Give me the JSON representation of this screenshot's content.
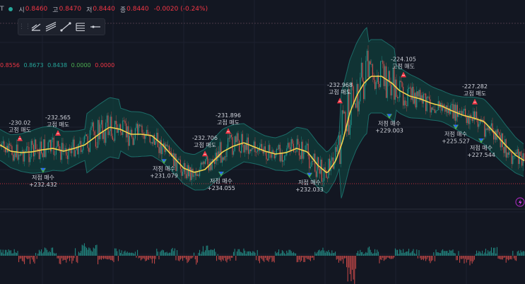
{
  "header": {
    "symbol_suffix": "T",
    "ohlc": [
      {
        "label": "시",
        "value": "0.8460"
      },
      {
        "label": "고",
        "value": "0.8470"
      },
      {
        "label": "저",
        "value": "0.8440"
      },
      {
        "label": "종",
        "value": "0.8440"
      }
    ],
    "change": "-0.0020 (-0.24%)",
    "status_color": "#26a69a"
  },
  "toolbar": {
    "tools": [
      "trend-angle-icon",
      "parallel-channel-icon",
      "trend-line-icon",
      "fib-retracement-icon",
      "horizontal-ray-icon"
    ]
  },
  "indicator": {
    "values": [
      {
        "value": "0.8556",
        "color": "#f23645"
      },
      {
        "value": "0.8673",
        "color": "#26a69a"
      },
      {
        "value": "0.8438",
        "color": "#26a69a"
      },
      {
        "value": "0.0000",
        "color": "#4caf50"
      },
      {
        "value": "0.0000",
        "color": "#f23645"
      }
    ]
  },
  "colors": {
    "up": "#26a69a",
    "down": "#ef5350",
    "basis": "#f2d44e",
    "band_fill": "#0e4a44",
    "band_line": "#26a69a",
    "sell_marker": "#f23645",
    "buy_marker_top": "#2962ff",
    "buy_marker_bottom": "#4caf50",
    "price_line": "#f23645"
  },
  "chart_data": {
    "type": "candlestick-with-bollinger-and-histogram",
    "price_line_value": 0.844,
    "signals": [
      {
        "type": "sell",
        "label": "고점 매도",
        "value": "-230.02",
        "x": 28
      },
      {
        "type": "buy",
        "label": "저점 매수",
        "value": "+232.432",
        "x": 61
      },
      {
        "type": "sell",
        "label": "고점 매도",
        "value": "-232.565",
        "x": 82
      },
      {
        "type": "buy",
        "label": "저점 매수",
        "value": "+231.079",
        "x": 232
      },
      {
        "type": "sell",
        "label": "고점 매도",
        "value": "-232.706",
        "x": 290
      },
      {
        "type": "buy",
        "label": "저점 매수",
        "value": "+234.055",
        "x": 313
      },
      {
        "type": "sell",
        "label": "고점 매도",
        "value": "-231.896",
        "x": 323
      },
      {
        "type": "buy",
        "label": "저점 매수",
        "value": "+232.033",
        "x": 438
      },
      {
        "type": "sell",
        "label": "고점 매도",
        "value": "-232.968",
        "x": 481
      },
      {
        "type": "buy",
        "label": "저점 매수",
        "value": "+229.003",
        "x": 551
      },
      {
        "type": "sell",
        "label": "고점 매도",
        "value": "-224.105",
        "x": 571
      },
      {
        "type": "buy",
        "label": "저점 매수",
        "value": "+225.527",
        "x": 645
      },
      {
        "type": "sell",
        "label": "고점 매도",
        "value": "-227.282",
        "x": 672
      },
      {
        "type": "buy",
        "label": "저점 매수",
        "value": "+227.544",
        "x": 681
      }
    ]
  }
}
